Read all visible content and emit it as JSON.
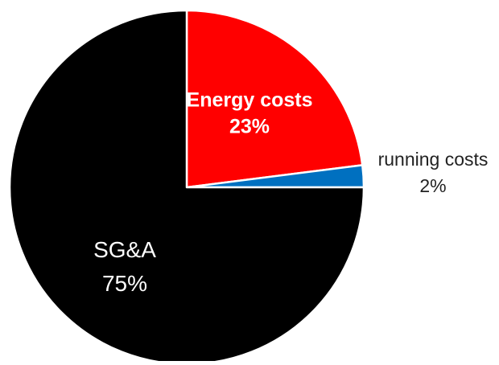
{
  "chart_data": {
    "type": "pie",
    "start_angle_deg": 0,
    "direction": "clockwise",
    "legend": "none",
    "slices": [
      {
        "name": "Energy costs",
        "value": 23,
        "value_label": "23%",
        "color": "#ff0000",
        "label_color": "#ffffff",
        "label_bold": true,
        "label_placement": "inside"
      },
      {
        "name": "running costs",
        "value": 2,
        "value_label": "2%",
        "color": "#0070c0",
        "label_color": "#222222",
        "label_bold": false,
        "label_placement": "outside"
      },
      {
        "name": "SG&A",
        "value": 75,
        "value_label": "75%",
        "color": "#000000",
        "label_color": "#ffffff",
        "label_bold": false,
        "label_placement": "inside"
      }
    ],
    "slice_border_color": "#ffffff"
  }
}
